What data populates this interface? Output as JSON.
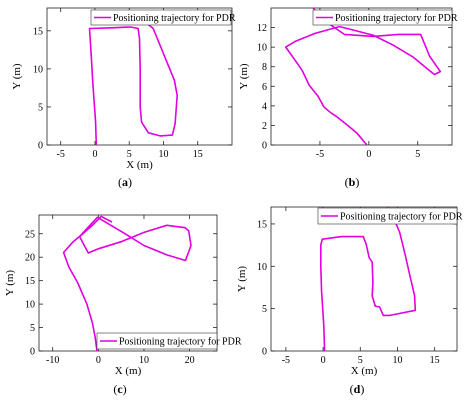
{
  "figure": {
    "legend_text": "Positioning trajectory for PDR",
    "line_color": "#e000e0",
    "panels": [
      {
        "id": "a",
        "label": "(a)",
        "label_bold": "a"
      },
      {
        "id": "b",
        "label": "(b)",
        "label_bold": "b"
      },
      {
        "id": "c",
        "label": "(c)",
        "label_bold": "c"
      },
      {
        "id": "d",
        "label": "(d)",
        "label_bold": "d"
      }
    ]
  },
  "chart_data": [
    {
      "panel": "(a)",
      "type": "line",
      "xlabel": "X (m)",
      "ylabel": "Y (m)",
      "xlim": [
        -7,
        20
      ],
      "ylim": [
        0,
        18
      ],
      "xticks": [
        -5,
        0,
        5,
        10,
        15
      ],
      "yticks": [
        0,
        5,
        10,
        15
      ],
      "grid": false,
      "legend_position": "top-right",
      "series": [
        {
          "name": "Positioning trajectory for PDR",
          "color": "#e000e0",
          "points": [
            [
              0.2,
              0
            ],
            [
              0.1,
              3
            ],
            [
              -0.3,
              8
            ],
            [
              -0.6,
              12.5
            ],
            [
              -0.8,
              15.3
            ],
            [
              2.5,
              15.4
            ],
            [
              5.2,
              15.5
            ],
            [
              6.3,
              15.3
            ],
            [
              6.5,
              14
            ],
            [
              6.6,
              10
            ],
            [
              6.6,
              5
            ],
            [
              6.8,
              3
            ],
            [
              7.8,
              1.6
            ],
            [
              9.5,
              1.2
            ],
            [
              11.3,
              1.3
            ],
            [
              11.7,
              2.8
            ],
            [
              12,
              6.5
            ],
            [
              11.6,
              8.5
            ],
            [
              10,
              12
            ],
            [
              8.5,
              15.3
            ],
            [
              7.3,
              16.2
            ],
            [
              6,
              16.8
            ]
          ]
        }
      ]
    },
    {
      "panel": "(b)",
      "type": "line",
      "xlabel": "",
      "ylabel": "Y (m)",
      "xlim": [
        -10,
        8.5
      ],
      "ylim": [
        0,
        14
      ],
      "xticks": [
        -5,
        0,
        5
      ],
      "yticks": [
        0,
        2,
        4,
        6,
        8,
        10,
        12
      ],
      "grid": false,
      "legend_position": "top-right",
      "series": [
        {
          "name": "Positioning trajectory for PDR",
          "color": "#e000e0",
          "points": [
            [
              -0.2,
              0
            ],
            [
              -1.2,
              1.2
            ],
            [
              -2.4,
              2.2
            ],
            [
              -3.3,
              2.9
            ],
            [
              -3.9,
              3.3
            ],
            [
              -4.6,
              3.9
            ],
            [
              -5.2,
              5
            ],
            [
              -6.1,
              6.1
            ],
            [
              -6.8,
              7.6
            ],
            [
              -7.7,
              8.9
            ],
            [
              -8.5,
              10
            ],
            [
              -7.5,
              10.6
            ],
            [
              -5.5,
              11.4
            ],
            [
              -3,
              12.1
            ],
            [
              -1.8,
              11.8
            ],
            [
              0.5,
              11.2
            ],
            [
              2.5,
              10.2
            ],
            [
              4.5,
              9
            ],
            [
              5.6,
              8.1
            ],
            [
              6.7,
              7.2
            ],
            [
              7.3,
              7.5
            ],
            [
              6.2,
              9.1
            ],
            [
              5.3,
              11.3
            ],
            [
              3,
              11.3
            ],
            [
              0.5,
              11.1
            ],
            [
              -2.5,
              11.3
            ],
            [
              -3.8,
              12.2
            ],
            [
              -5,
              13.2
            ],
            [
              -5.7,
              14
            ]
          ]
        }
      ]
    },
    {
      "panel": "(c)",
      "type": "line",
      "xlabel": "X (m)",
      "ylabel": "Y (m)",
      "xlim": [
        -13,
        26
      ],
      "ylim": [
        0,
        29
      ],
      "xticks": [
        -10,
        0,
        10,
        20
      ],
      "yticks": [
        0,
        5,
        10,
        15,
        20,
        25
      ],
      "grid": false,
      "legend_position": "bottom-right",
      "series": [
        {
          "name": "Positioning trajectory for PDR",
          "color": "#e000e0",
          "points": [
            [
              -0.3,
              0
            ],
            [
              -0.7,
              3
            ],
            [
              -1.3,
              6
            ],
            [
              -2.5,
              10
            ],
            [
              -4.5,
              14.5
            ],
            [
              -6.5,
              18
            ],
            [
              -7.6,
              21
            ],
            [
              -5.5,
              23.3
            ],
            [
              -3.9,
              24.6
            ],
            [
              -0.2,
              28.5
            ],
            [
              5,
              25.5
            ],
            [
              10,
              22.5
            ],
            [
              15,
              20.5
            ],
            [
              19.1,
              19.3
            ],
            [
              20.3,
              22.5
            ],
            [
              19.8,
              25.6
            ],
            [
              19,
              26.3
            ],
            [
              15,
              26.8
            ],
            [
              10,
              25.3
            ],
            [
              5,
              23.3
            ],
            [
              0,
              21.8
            ],
            [
              -2.2,
              20.9
            ],
            [
              -4.1,
              24.4
            ],
            [
              -1.3,
              26.8
            ],
            [
              0.6,
              28.7
            ],
            [
              3,
              27.5
            ]
          ]
        }
      ]
    },
    {
      "panel": "(d)",
      "type": "line",
      "xlabel": "X (m)",
      "ylabel": "Y (m)",
      "xlim": [
        -7,
        18
      ],
      "ylim": [
        0,
        17
      ],
      "xticks": [
        -5,
        0,
        5,
        10,
        15
      ],
      "yticks": [
        0,
        5,
        10,
        15
      ],
      "grid": false,
      "legend_position": "top-right",
      "series": [
        {
          "name": "Positioning trajectory for PDR",
          "color": "#e000e0",
          "points": [
            [
              0.2,
              0
            ],
            [
              0.1,
              3
            ],
            [
              -0.2,
              7
            ],
            [
              -0.3,
              10
            ],
            [
              -0.3,
              12.5
            ],
            [
              -0.1,
              13.2
            ],
            [
              2.5,
              13.5
            ],
            [
              5.4,
              13.5
            ],
            [
              5.8,
              12.6
            ],
            [
              6.2,
              11
            ],
            [
              6.6,
              10.5
            ],
            [
              6.7,
              8
            ],
            [
              6.6,
              6.5
            ],
            [
              7,
              5.3
            ],
            [
              7.6,
              5.2
            ],
            [
              8.1,
              4.2
            ],
            [
              9,
              4.2
            ],
            [
              12.4,
              4.8
            ],
            [
              12.3,
              6.5
            ],
            [
              11.7,
              8.8
            ],
            [
              11,
              11.5
            ],
            [
              10.3,
              14
            ],
            [
              9.2,
              16.3
            ],
            [
              8.6,
              17
            ]
          ]
        }
      ]
    }
  ]
}
